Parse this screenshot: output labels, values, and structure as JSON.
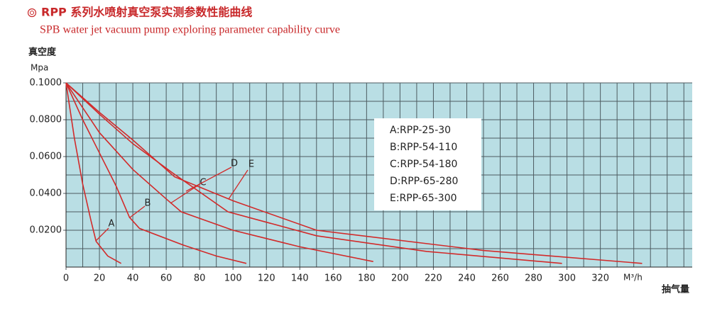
{
  "chart_data": {
    "type": "line",
    "title": "RPP 系列水喷射真空泵实测参数性能曲线",
    "subtitle": "SPB water jet vacuum pump exploring parameter capability curve",
    "y_label": "真空度",
    "y_unit": "Mpa",
    "x_label": "抽气量",
    "x_unit": "M³/h",
    "xlim": [
      0,
      375
    ],
    "ylim": [
      0,
      0.1
    ],
    "xticks": [
      0,
      20,
      40,
      60,
      80,
      100,
      120,
      140,
      160,
      180,
      200,
      220,
      240,
      260,
      280,
      300,
      320
    ],
    "yticks": [
      {
        "value": 0.02,
        "label": "0.0200"
      },
      {
        "value": 0.04,
        "label": "0.0400"
      },
      {
        "value": 0.06,
        "label": "0.0600"
      },
      {
        "value": 0.08,
        "label": "0.0800"
      },
      {
        "value": 0.1,
        "label": "0.1000"
      }
    ],
    "grid_step_x": 10,
    "grid_step_y": 0.01,
    "grid": true,
    "background": "#b9dee4",
    "series": [
      {
        "name": "A:RPP-25-30",
        "label": "A",
        "color": "#d22a2a",
        "x": [
          0,
          5,
          10,
          15,
          18,
          25,
          33
        ],
        "values": [
          0.1,
          0.07,
          0.045,
          0.025,
          0.014,
          0.006,
          0.002
        ]
      },
      {
        "name": "B:RPP-54-110",
        "label": "B",
        "color": "#d22a2a",
        "x": [
          0,
          10,
          20,
          30,
          38,
          44,
          70,
          90,
          108
        ],
        "values": [
          0.1,
          0.08,
          0.062,
          0.044,
          0.027,
          0.021,
          0.012,
          0.006,
          0.002
        ]
      },
      {
        "name": "C:RPP-54-180",
        "label": "C",
        "color": "#d22a2a",
        "x": [
          0,
          20,
          40,
          60,
          69,
          100,
          140,
          184
        ],
        "values": [
          0.1,
          0.073,
          0.053,
          0.037,
          0.03,
          0.02,
          0.011,
          0.003
        ]
      },
      {
        "name": "D:RPP-65-280",
        "label": "D",
        "color": "#d22a2a",
        "x": [
          0,
          20,
          40,
          64,
          97,
          150,
          216,
          297
        ],
        "values": [
          0.1,
          0.083,
          0.067,
          0.051,
          0.03,
          0.017,
          0.0085,
          0.002
        ]
      },
      {
        "name": "E:RPP-65-300",
        "label": "E",
        "color": "#d22a2a",
        "x": [
          0,
          20,
          40,
          65,
          100,
          150,
          250,
          345
        ],
        "values": [
          0.1,
          0.084,
          0.069,
          0.049,
          0.036,
          0.02,
          0.009,
          0.002
        ]
      }
    ]
  }
}
